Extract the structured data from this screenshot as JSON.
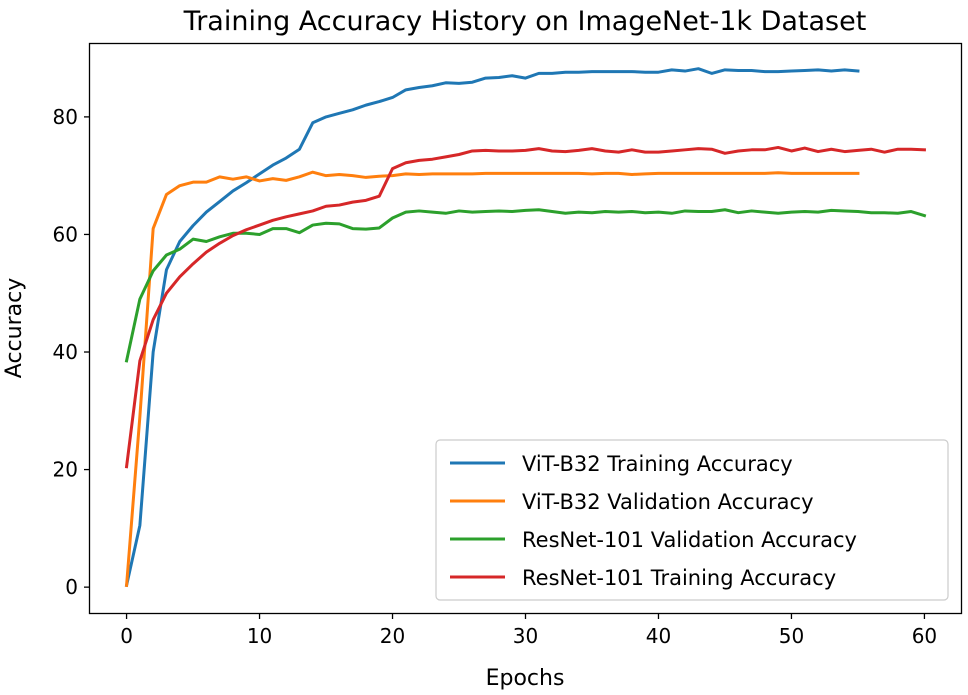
{
  "chart_data": {
    "type": "line",
    "title": "Training Accuracy History on ImageNet-1k Dataset",
    "xlabel": "Epochs",
    "ylabel": "Accuracy",
    "xlim": [
      -2.75,
      62.75
    ],
    "ylim": [
      -4.4,
      92.4
    ],
    "xticks": [
      0,
      10,
      20,
      30,
      40,
      50,
      60
    ],
    "yticks": [
      0,
      20,
      40,
      60,
      80
    ],
    "grid": false,
    "legend_position": "lower-right",
    "series": [
      {
        "name": "ViT-B32 Training Accuracy",
        "color": "#1f77b4",
        "x": [
          0,
          1,
          2,
          3,
          4,
          5,
          6,
          7,
          8,
          9,
          10,
          11,
          12,
          13,
          14,
          15,
          16,
          17,
          18,
          19,
          20,
          21,
          22,
          23,
          24,
          25,
          26,
          27,
          28,
          29,
          30,
          31,
          32,
          33,
          34,
          35,
          36,
          37,
          38,
          39,
          40,
          41,
          42,
          43,
          44,
          45,
          46,
          47,
          48,
          49,
          50,
          51,
          52,
          53,
          54,
          55
        ],
        "values": [
          0.3,
          10.5,
          40,
          54,
          58.8,
          61.5,
          63.8,
          65.6,
          67.4,
          68.8,
          70.3,
          71.8,
          73,
          74.5,
          79,
          80,
          80.6,
          81.2,
          82,
          82.6,
          83.3,
          84.6,
          85,
          85.3,
          85.8,
          85.7,
          85.9,
          86.6,
          86.7,
          87,
          86.6,
          87.4,
          87.4,
          87.6,
          87.6,
          87.7,
          87.7,
          87.7,
          87.7,
          87.6,
          87.6,
          88,
          87.8,
          88.2,
          87.4,
          88,
          87.9,
          87.9,
          87.7,
          87.7,
          87.8,
          87.9,
          88,
          87.8,
          88,
          87.8
        ]
      },
      {
        "name": "ViT-B32 Validation Accuracy",
        "color": "#ff7f0e",
        "x": [
          0,
          1,
          2,
          3,
          4,
          5,
          6,
          7,
          8,
          9,
          10,
          11,
          12,
          13,
          14,
          15,
          16,
          17,
          18,
          19,
          20,
          21,
          22,
          23,
          24,
          25,
          26,
          27,
          28,
          29,
          30,
          31,
          32,
          33,
          34,
          35,
          36,
          37,
          38,
          39,
          40,
          41,
          42,
          43,
          44,
          45,
          46,
          47,
          48,
          49,
          50,
          51,
          52,
          53,
          54,
          55
        ],
        "values": [
          0.3,
          29,
          61,
          66.8,
          68.3,
          68.9,
          68.9,
          69.8,
          69.4,
          69.8,
          69.1,
          69.5,
          69.2,
          69.8,
          70.6,
          70,
          70.2,
          70,
          69.7,
          69.9,
          70,
          70.3,
          70.2,
          70.3,
          70.3,
          70.3,
          70.3,
          70.4,
          70.4,
          70.4,
          70.4,
          70.4,
          70.4,
          70.4,
          70.4,
          70.3,
          70.4,
          70.4,
          70.2,
          70.3,
          70.4,
          70.4,
          70.4,
          70.4,
          70.4,
          70.4,
          70.4,
          70.4,
          70.4,
          70.5,
          70.4,
          70.4,
          70.4,
          70.4,
          70.4,
          70.4
        ]
      },
      {
        "name": "ResNet-101 Validation Accuracy",
        "color": "#2ca02c",
        "x": [
          0,
          1,
          2,
          3,
          4,
          5,
          6,
          7,
          8,
          9,
          10,
          11,
          12,
          13,
          14,
          15,
          16,
          17,
          18,
          19,
          20,
          21,
          22,
          23,
          24,
          25,
          26,
          27,
          28,
          29,
          30,
          31,
          32,
          33,
          34,
          35,
          36,
          37,
          38,
          39,
          40,
          41,
          42,
          43,
          44,
          45,
          46,
          47,
          48,
          49,
          50,
          51,
          52,
          53,
          54,
          55,
          56,
          57,
          58,
          59,
          60
        ],
        "values": [
          38.5,
          49,
          53.8,
          56.5,
          57.5,
          59.2,
          58.8,
          59.6,
          60.2,
          60.2,
          60,
          61,
          61,
          60.3,
          61.6,
          61.9,
          61.8,
          61,
          60.9,
          61.1,
          62.8,
          63.8,
          64,
          63.8,
          63.6,
          64,
          63.8,
          63.9,
          64,
          63.9,
          64.1,
          64.2,
          63.9,
          63.6,
          63.8,
          63.7,
          63.9,
          63.8,
          63.9,
          63.7,
          63.8,
          63.6,
          64,
          63.9,
          63.9,
          64.2,
          63.7,
          64,
          63.8,
          63.6,
          63.8,
          63.9,
          63.8,
          64.1,
          64,
          63.9,
          63.7,
          63.7,
          63.6,
          63.9,
          63.2
        ]
      },
      {
        "name": "ResNet-101 Training Accuracy",
        "color": "#d62728",
        "x": [
          0,
          1,
          2,
          3,
          4,
          5,
          6,
          7,
          8,
          9,
          10,
          11,
          12,
          13,
          14,
          15,
          16,
          17,
          18,
          19,
          20,
          21,
          22,
          23,
          24,
          25,
          26,
          27,
          28,
          29,
          30,
          31,
          32,
          33,
          34,
          35,
          36,
          37,
          38,
          39,
          40,
          41,
          42,
          43,
          44,
          45,
          46,
          47,
          48,
          49,
          50,
          51,
          52,
          53,
          54,
          55,
          56,
          57,
          58,
          59,
          60
        ],
        "values": [
          20.5,
          38.5,
          45.5,
          50,
          52.8,
          55,
          57,
          58.5,
          59.8,
          60.8,
          61.6,
          62.4,
          63,
          63.5,
          64,
          64.8,
          65,
          65.5,
          65.8,
          66.5,
          71.2,
          72.2,
          72.6,
          72.8,
          73.2,
          73.6,
          74.2,
          74.3,
          74.2,
          74.2,
          74.3,
          74.6,
          74.2,
          74.1,
          74.3,
          74.6,
          74.2,
          74,
          74.4,
          74,
          74,
          74.2,
          74.4,
          74.6,
          74.5,
          73.8,
          74.2,
          74.4,
          74.4,
          74.8,
          74.2,
          74.7,
          74.1,
          74.5,
          74.1,
          74.3,
          74.5,
          74,
          74.5,
          74.5,
          74.4
        ]
      }
    ]
  }
}
